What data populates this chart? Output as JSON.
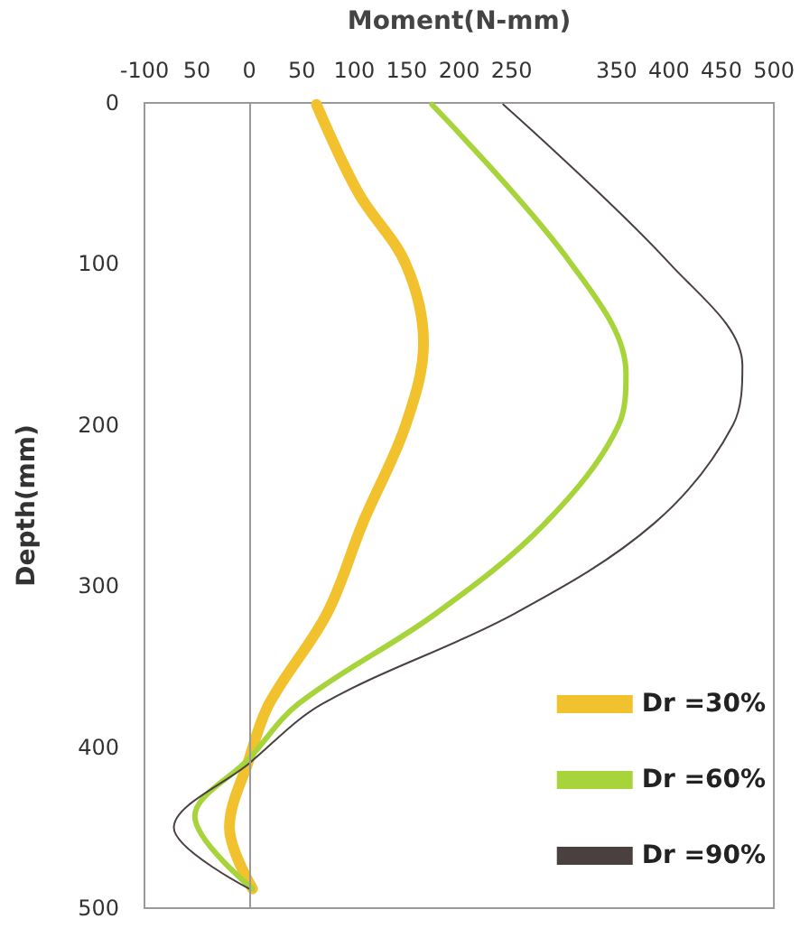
{
  "chart_data": {
    "type": "line",
    "xlabel": "Moment(N-mm)",
    "ylabel": "Depth(mm)",
    "xlim": [
      -100,
      500
    ],
    "xticks": [
      -100,
      {
        "value": -50,
        "label": "50"
      },
      0,
      50,
      100,
      150,
      200,
      250,
      350,
      400,
      450,
      500
    ],
    "ylim": [
      500,
      0
    ],
    "yticks": [
      0,
      100,
      200,
      300,
      400,
      500
    ],
    "grid": false,
    "legend": "bottom right",
    "line_style": "solid",
    "ref_lines": [
      {
        "axis": "x",
        "value": 0,
        "color": "#999999"
      }
    ],
    "series": [
      {
        "name": "Dr =30%",
        "color": "#f2c12e",
        "x": [
          64,
          104,
          149,
          166,
          149,
          108,
          74,
          19,
          0,
          -19,
          3
        ],
        "values": [
          1,
          56,
          100,
          149,
          200,
          261,
          317,
          373,
          407,
          450,
          488
        ]
      },
      {
        "name": "Dr =60%",
        "color": "#a6d43a",
        "x": [
          174,
          307,
          359,
          352,
          282,
          178,
          47,
          0,
          -52,
          3
        ],
        "values": [
          1,
          100,
          168,
          200,
          261,
          317,
          373,
          407,
          443,
          488
        ]
      },
      {
        "name": "Dr =90%",
        "color": "#4a4040",
        "x": [
          242,
          401,
          470,
          461,
          386,
          253,
          70,
          0,
          -72,
          0
        ],
        "values": [
          1,
          100,
          163,
          200,
          261,
          317,
          373,
          410,
          450,
          488
        ]
      }
    ]
  }
}
